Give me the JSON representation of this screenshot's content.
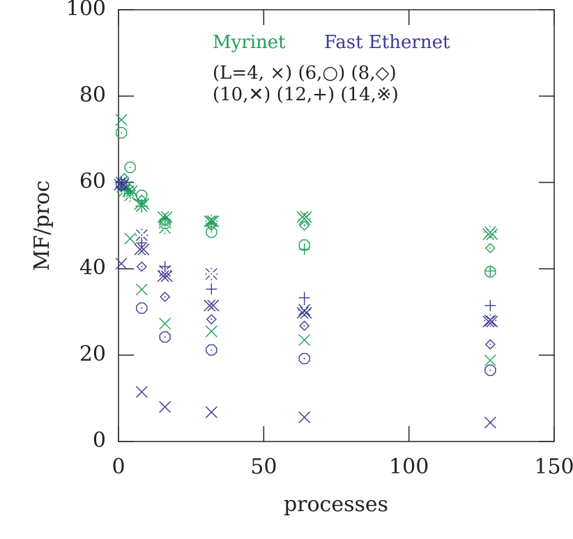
{
  "chart_data": {
    "type": "scatter",
    "x_label": "processes",
    "y_label": "MF/proc",
    "xlim": [
      0,
      150
    ],
    "xticks": [
      0,
      50,
      100,
      150
    ],
    "ylim": [
      0,
      100
    ],
    "yticks": [
      0,
      20,
      40,
      60,
      80,
      100
    ],
    "legend": {
      "networks": [
        {
          "name": "Myrinet",
          "color": "#1fa05a"
        },
        {
          "name": "Fast Ethernet",
          "color": "#3a3a96"
        }
      ],
      "lines": [
        "(L=4, ×) (6,○) (8,◇)",
        "(10,✕) (12,+) (14,※)"
      ]
    },
    "series": [
      {
        "marker": "x",
        "color": "#1fa05a",
        "x": [
          1,
          4,
          8,
          16,
          32,
          64,
          128
        ],
        "values": [
          74.5,
          47,
          35.2,
          27.3,
          25.5,
          23.5,
          18.8
        ]
      },
      {
        "marker": "o",
        "color": "#1fa05a",
        "x": [
          1,
          4,
          8,
          16,
          32,
          64,
          128
        ],
        "values": [
          71.5,
          63.5,
          57,
          50.5,
          48.5,
          45.5,
          39.3
        ]
      },
      {
        "marker": "diamond",
        "color": "#1fa05a",
        "x": [
          2,
          4,
          8,
          16,
          32,
          64,
          128
        ],
        "values": [
          61,
          58.5,
          56,
          51,
          50,
          50,
          44.8
        ]
      },
      {
        "marker": "xx",
        "color": "#1fa05a",
        "x": [
          2,
          4,
          8,
          16,
          32,
          64,
          128
        ],
        "values": [
          59,
          58,
          55,
          52,
          51,
          52,
          48
        ]
      },
      {
        "marker": "plus",
        "color": "#1fa05a",
        "x": [
          2,
          4,
          8,
          16,
          32,
          64,
          128
        ],
        "values": [
          58.5,
          57.5,
          54.5,
          51.5,
          50.5,
          44.5,
          39.5
        ]
      },
      {
        "marker": "star",
        "color": "#1fa05a",
        "x": [
          2,
          4,
          8,
          16,
          32,
          64,
          128
        ],
        "values": [
          58,
          57,
          54.5,
          49.5,
          51,
          51.5,
          48.5
        ]
      },
      {
        "marker": "x",
        "color": "#3a3a96",
        "x": [
          1,
          8,
          16,
          32,
          64,
          128
        ],
        "values": [
          41.2,
          11.5,
          8,
          6.8,
          5.6,
          4.4
        ]
      },
      {
        "marker": "o",
        "color": "#3a3a96",
        "x": [
          1,
          8,
          16,
          32,
          64,
          128
        ],
        "values": [
          59.5,
          30.9,
          24.2,
          21.2,
          19.2,
          16.5
        ]
      },
      {
        "marker": "diamond",
        "color": "#3a3a96",
        "x": [
          1,
          8,
          16,
          32,
          64,
          128
        ],
        "values": [
          59,
          40.5,
          33.5,
          28.3,
          26.8,
          22.5
        ]
      },
      {
        "marker": "xx",
        "color": "#3a3a96",
        "x": [
          1,
          8,
          16,
          32,
          64,
          128
        ],
        "values": [
          59.5,
          44.5,
          38.3,
          31.5,
          29.8,
          27.8
        ]
      },
      {
        "marker": "plus",
        "color": "#3a3a96",
        "x": [
          1,
          8,
          16,
          32,
          64,
          128
        ],
        "values": [
          60,
          46,
          40.5,
          35.3,
          33.3,
          31.5
        ]
      },
      {
        "marker": "star",
        "color": "#3a3a96",
        "x": [
          1,
          8,
          16,
          32,
          64,
          128
        ],
        "values": [
          60,
          47.8,
          39.5,
          38.8,
          30.5,
          28
        ]
      }
    ]
  }
}
